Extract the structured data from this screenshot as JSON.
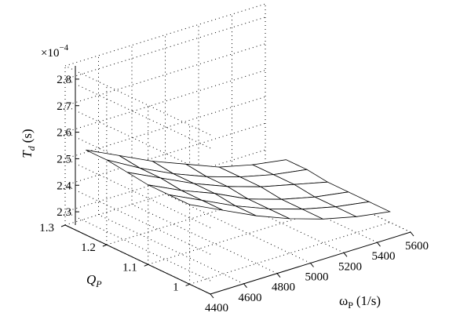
{
  "chart_data": {
    "type": "surface",
    "exponent_label": "×10",
    "exponent_power": "−4",
    "zlabel": "T",
    "zlabel_sub": "d",
    "zlabel_unit": "(s)",
    "ylabel": "Q",
    "ylabel_sub": "P",
    "xlabel": "ω",
    "xlabel_sub": "P",
    "xlabel_unit": "(1/s)",
    "x_ticks": [
      "4400",
      "4600",
      "4800",
      "5000",
      "5200",
      "5400",
      "5600"
    ],
    "y_ticks": [
      "1",
      "1.1",
      "1.2",
      "1.3"
    ],
    "z_ticks": [
      "2.3",
      "2.4",
      "2.5",
      "2.6",
      "2.7",
      "2.8"
    ],
    "xlim": [
      4400,
      5600
    ],
    "ylim": [
      0.95,
      1.3
    ],
    "zlim": [
      2.25,
      2.85
    ],
    "grid": true,
    "omega_values": [
      4400,
      4600,
      4800,
      5000,
      5200,
      5400,
      5600
    ],
    "Q_values": [
      1.0,
      1.05,
      1.1,
      1.15,
      1.2,
      1.25
    ],
    "surface_Td": [
      [
        2.55,
        2.49,
        2.43,
        2.38,
        2.34,
        2.31,
        2.29
      ],
      [
        2.55,
        2.49,
        2.43,
        2.38,
        2.34,
        2.31,
        2.29
      ],
      [
        2.55,
        2.49,
        2.44,
        2.38,
        2.34,
        2.31,
        2.29
      ],
      [
        2.56,
        2.5,
        2.44,
        2.39,
        2.35,
        2.32,
        2.29
      ],
      [
        2.57,
        2.5,
        2.44,
        2.39,
        2.35,
        2.32,
        2.3
      ],
      [
        2.57,
        2.51,
        2.45,
        2.4,
        2.35,
        2.32,
        2.3
      ]
    ]
  }
}
